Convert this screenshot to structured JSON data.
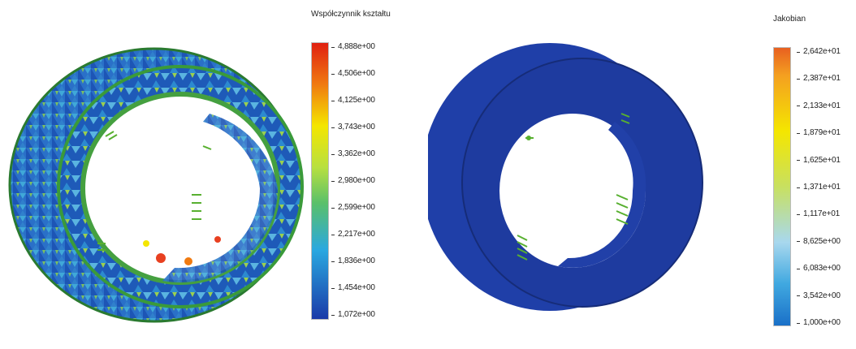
{
  "left": {
    "legend": {
      "title": "Współczynnik kształtu",
      "ticks": [
        "4,888e+00",
        "4,506e+00",
        "4,125e+00",
        "3,743e+00",
        "3,362e+00",
        "2,980e+00",
        "2,599e+00",
        "2,217e+00",
        "1,836e+00",
        "1,454e+00",
        "1,072e+00"
      ]
    }
  },
  "right": {
    "legend": {
      "title": "Jakobian",
      "ticks": [
        "2,642e+01",
        "2,387e+01",
        "2,133e+01",
        "1,879e+01",
        "1,625e+01",
        "1,371e+01",
        "1,117e+01",
        "8,625e+00",
        "6,083e+00",
        "3,542e+00",
        "1,000e+00"
      ]
    }
  },
  "colors": {
    "scale_top": "#e02010",
    "scale_orange": "#f07a10",
    "scale_yellow": "#f4e600",
    "scale_green": "#8fd040",
    "scale_lightblue": "#2aa8e0",
    "scale_bottom": "#1a3aa8",
    "mesh_blue": "#1f49b8",
    "fixture_green": "#58b030"
  }
}
